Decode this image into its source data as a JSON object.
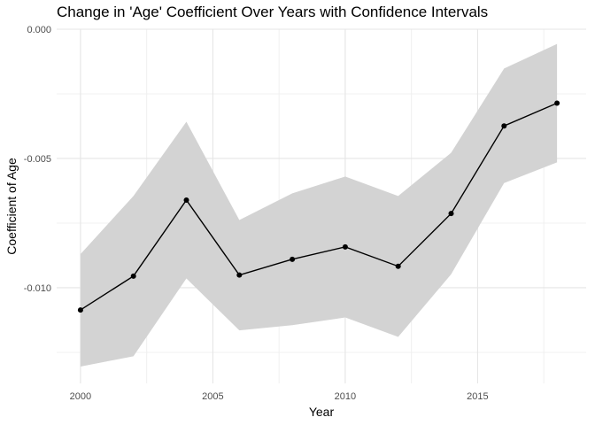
{
  "chart_data": {
    "type": "line",
    "title": "Change in 'Age' Coefficient Over Years with Confidence Intervals",
    "xlabel": "Year",
    "ylabel": "Coefficient of Age",
    "xlim": [
      1999.1,
      2019.1
    ],
    "ylim": [
      -0.0137,
      0.0
    ],
    "x_ticks": [
      2000,
      2005,
      2010,
      2015
    ],
    "x_tick_labels": [
      "2000",
      "2005",
      "2010",
      "2015"
    ],
    "y_ticks": [
      -0.01,
      -0.005,
      0.0
    ],
    "y_tick_labels": [
      "-0.010",
      "-0.005",
      "0.000"
    ],
    "grid": true,
    "legend": "none",
    "series": [
      {
        "x": [
          2000,
          2002,
          2004,
          2006,
          2008,
          2010,
          2012,
          2014,
          2016,
          2018
        ],
        "y": [
          -0.01086,
          -0.00955,
          -0.00661,
          -0.00951,
          -0.0089,
          -0.00842,
          -0.00917,
          -0.00713,
          -0.00374,
          -0.00286
        ],
        "ci_lower": [
          -0.01305,
          -0.01265,
          -0.00964,
          -0.01165,
          -0.01145,
          -0.01115,
          -0.0119,
          -0.00948,
          -0.00595,
          -0.00515
        ],
        "ci_upper": [
          -0.0087,
          -0.00645,
          -0.00358,
          -0.00738,
          -0.00635,
          -0.0057,
          -0.00645,
          -0.00478,
          -0.00152,
          -0.00057
        ]
      }
    ],
    "colors": {
      "line": "#000000",
      "points": "#000000",
      "ribbon": "#d3d3d3",
      "grid_major": "#e5e5e5",
      "grid_minor": "#f0f0f0"
    }
  }
}
